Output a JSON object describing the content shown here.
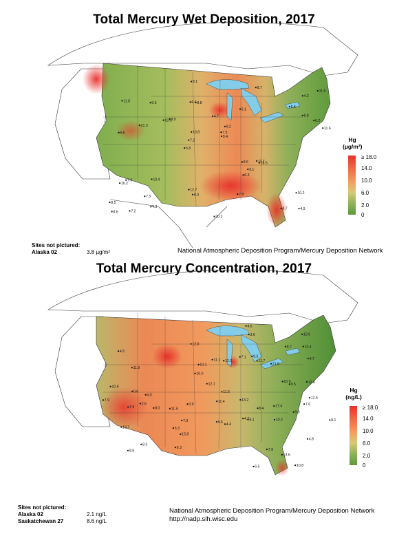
{
  "panel1": {
    "title": "Total Mercury Wet Deposition, 2017",
    "legend": {
      "title_line1": "Hg",
      "title_line2": "(µg/m²)",
      "ticks": [
        "≥ 18.0",
        "14.0",
        "10.0",
        "6.0",
        "2.0",
        "0"
      ]
    },
    "not_pictured_label": "Sites not pictured:",
    "not_pictured": [
      {
        "site": "Alaska 02",
        "value": "3.8 µg/m²"
      }
    ],
    "credit": "National Atmospheric Deposition Program/Mercury Deposition Network",
    "site_labels": [
      "4.9",
      "9.6",
      "4.2",
      "5.8",
      "6.1",
      "7.2",
      "6.5",
      "4.7",
      "7.9",
      "9.9",
      "8.5",
      "7.5",
      "8.8",
      "9.2",
      "18.5",
      "11.8",
      "8.1",
      "11.6",
      "8.6",
      "8.8",
      "7.2",
      "12.7",
      "13.8",
      "9.5",
      "8.7",
      "10.4",
      "8.7",
      "10.2",
      "11.7",
      "20.2",
      "15.0",
      "21.3",
      "6.3",
      "4.3",
      "6.2",
      "7.5",
      "8.6",
      "8.4",
      "9.4",
      "10.2",
      "5.6",
      "11.6",
      "9.1",
      "7.8"
    ]
  },
  "panel2": {
    "title": "Total Mercury Concentration, 2017",
    "legend": {
      "title_line1": "Hg",
      "title_line2": "(ng/L)",
      "ticks": [
        "≥ 18.0",
        "14.0",
        "10.0",
        "6.0",
        "2.0",
        "0"
      ]
    },
    "not_pictured_label": "Sites not pictured:",
    "not_pictured": [
      {
        "site": "Alaska 02",
        "value": "2.1 ng/L"
      },
      {
        "site": "Saskatchewan 27",
        "value": "8.6 ng/L"
      }
    ],
    "credit": "National Atmospheric Deposition Program/Mercury Deposition Network",
    "url": "http://nadp.slh.wisc.edu",
    "site_labels": [
      "10.8",
      "2.6",
      "4.7",
      "4.5",
      "4.8",
      "11.9",
      "8.3",
      "11.9",
      "21.6",
      "11.1",
      "11.7",
      "13.6",
      "15.8",
      "12.0",
      "13.2",
      "13.7",
      "17.4",
      "11.6",
      "10.9",
      "9.9",
      "10.6",
      "12.0",
      "10.9",
      "9.1",
      "12.5",
      "9.6",
      "8.0",
      "11.4",
      "12.1",
      "10.4",
      "9.1",
      "7.9",
      "5.3",
      "9.3",
      "10.1",
      "9.9",
      "7.6",
      "7.9",
      "8.7",
      "6.5",
      "7.0",
      "4.4",
      "8.3",
      "4.6",
      "3.9",
      "4.0",
      "4.7",
      "3.6",
      "7.1",
      "5.5",
      "8.4",
      "12.6",
      "10.2",
      "9.5",
      "10.0",
      "7.9"
    ]
  },
  "colors": {
    "high": "#e8322c",
    "mid": "#f1a160",
    "low": "#5c9a3a",
    "water": "#84cde8"
  }
}
